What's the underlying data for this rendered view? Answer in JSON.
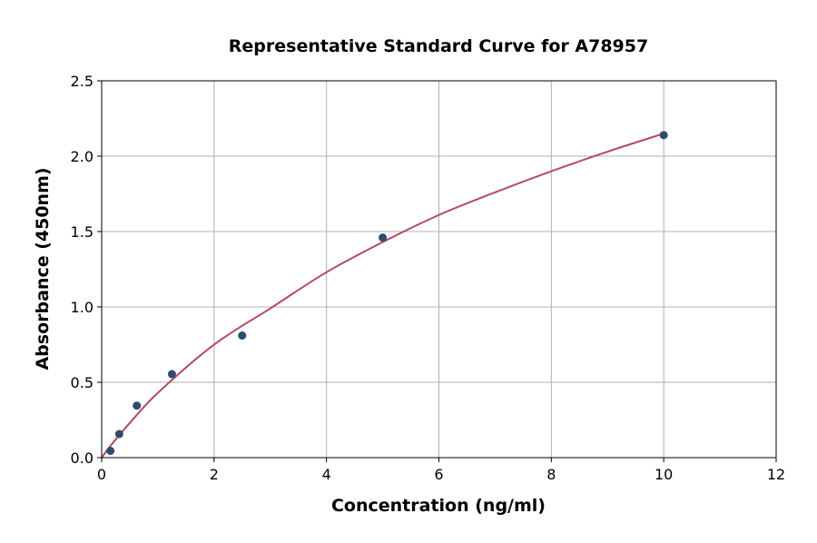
{
  "chart_data": {
    "type": "scatter",
    "title": "Representative Standard Curve for A78957",
    "xlabel": "Concentration (ng/ml)",
    "ylabel": "Absorbance (450nm)",
    "xlim": [
      0,
      12
    ],
    "ylim": [
      0,
      2.5
    ],
    "xticks": [
      0,
      2,
      4,
      6,
      8,
      10,
      12
    ],
    "yticks": [
      0.0,
      0.5,
      1.0,
      1.5,
      2.0,
      2.5
    ],
    "xtick_labels": [
      "0",
      "2",
      "4",
      "6",
      "8",
      "10",
      "12"
    ],
    "ytick_labels": [
      "0.0",
      "0.5",
      "1.0",
      "1.5",
      "2.0",
      "2.5"
    ],
    "grid": true,
    "points": {
      "x": [
        0.156,
        0.313,
        0.625,
        1.25,
        2.5,
        5,
        10
      ],
      "y": [
        0.045,
        0.157,
        0.345,
        0.554,
        0.81,
        1.46,
        2.14
      ],
      "color": "#2f4b6e"
    },
    "fit_curve": {
      "x": [
        0,
        0.16,
        0.5,
        1,
        2,
        3,
        4,
        5,
        6,
        7,
        8,
        9,
        10
      ],
      "y": [
        0.0,
        0.08,
        0.23,
        0.43,
        0.75,
        0.99,
        1.23,
        1.43,
        1.61,
        1.76,
        1.9,
        2.03,
        2.15
      ],
      "color": "#b5476b"
    }
  }
}
